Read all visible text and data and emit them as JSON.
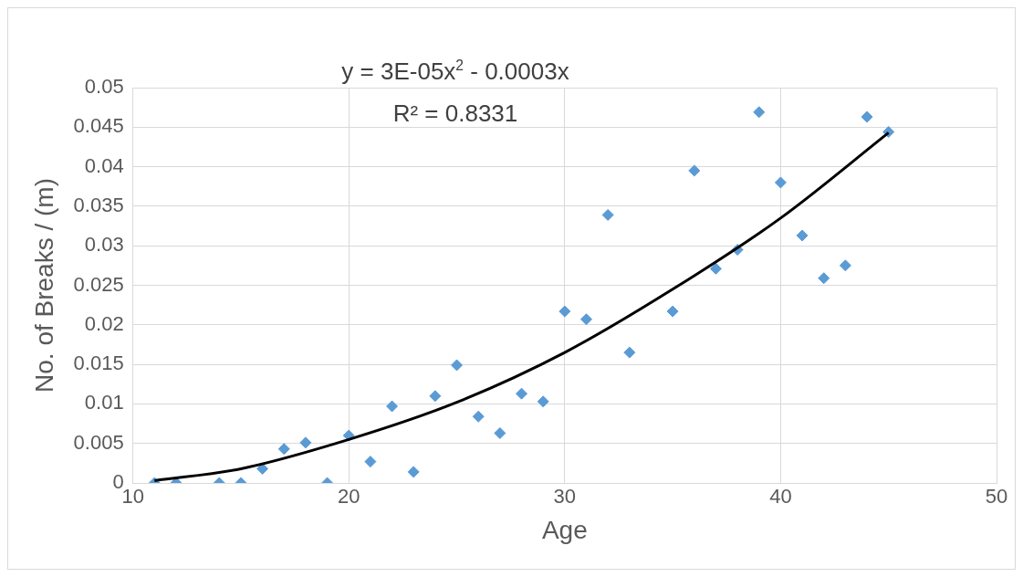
{
  "chart_data": {
    "type": "scatter",
    "xlabel": "Age",
    "ylabel": "No. of Breaks / (m)",
    "annotations": [
      "y = 3E-05x$^{2}$ - 0.0003x",
      "R² = 0.8331"
    ],
    "xlim": [
      10,
      50
    ],
    "xticks": [
      10,
      20,
      30,
      40,
      50
    ],
    "ylim": [
      0,
      0.05
    ],
    "yticks": [
      0,
      0.005,
      0.01,
      0.015,
      0.02,
      0.025,
      0.03,
      0.035,
      0.04,
      0.045,
      0.05
    ],
    "grid": true,
    "legend": false,
    "series": [
      {
        "marker": "diamond",
        "color": "#5b9bd5",
        "x": [
          11,
          12,
          14,
          15,
          16,
          17,
          18,
          19,
          20,
          21,
          22,
          23,
          24,
          25,
          26,
          27,
          28,
          29,
          30,
          31,
          32,
          33,
          35,
          36,
          37,
          38,
          39,
          40,
          41,
          42,
          43,
          44,
          45
        ],
        "values": [
          0,
          0,
          0,
          0,
          0.0018,
          0.0043,
          0.0051,
          0,
          0.006,
          0.0027,
          0.0097,
          0.0014,
          0.011,
          0.0149,
          0.0084,
          0.0063,
          0.0113,
          0.0103,
          0.0217,
          0.0207,
          0.0339,
          0.0165,
          0.0217,
          0.0395,
          0.0271,
          0.0295,
          0.0469,
          0.038,
          0.0313,
          0.0259,
          0.0275,
          0.0463,
          0.0444
        ]
      },
      {
        "type": "line",
        "marker": "none",
        "color": "#000000",
        "x": [
          11,
          15,
          20,
          25,
          30,
          35,
          40,
          45
        ],
        "values": [
          0.0003,
          0.0018,
          0.0055,
          0.0102,
          0.0165,
          0.0245,
          0.0335,
          0.0443
        ]
      }
    ]
  }
}
